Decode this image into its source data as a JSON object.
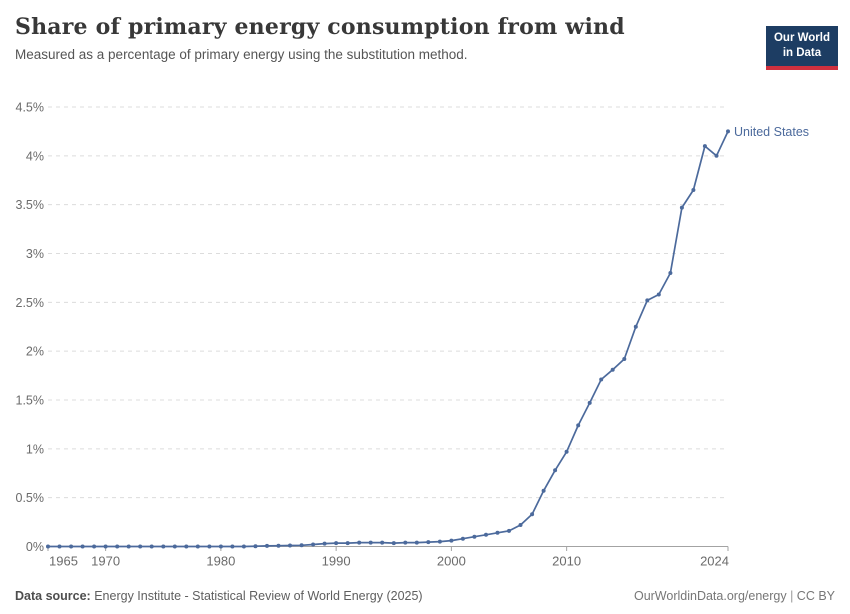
{
  "header": {
    "title": "Share of primary energy consumption from wind",
    "subtitle": "Measured as a percentage of primary energy using the substitution method."
  },
  "logo": {
    "line1": "Our World",
    "line2": "in Data",
    "bg_color": "#1d3d63",
    "bar_color": "#cf303e"
  },
  "footer": {
    "datasource_label": "Data source:",
    "datasource_text": " Energy Institute - Statistical Review of World Energy (2025)",
    "url_label": "OurWorldinData.org/energy",
    "separator": " | ",
    "license_label": "CC BY"
  },
  "chart_data": {
    "type": "line",
    "title": "Share of primary energy consumption from wind",
    "subtitle": "Measured as a percentage of primary energy using the substitution method.",
    "xlabel": "",
    "ylabel": "",
    "x_range": [
      1965,
      2024
    ],
    "ylim": [
      0,
      4.5
    ],
    "grid": "horizontal-dashed",
    "legend_position": "end-of-line",
    "xticks": [
      1965,
      1970,
      1980,
      1990,
      2000,
      2010,
      2024
    ],
    "yticks": [
      {
        "value": 0,
        "label": "0%"
      },
      {
        "value": 0.5,
        "label": "0.5%"
      },
      {
        "value": 1,
        "label": "1%"
      },
      {
        "value": 1.5,
        "label": "1.5%"
      },
      {
        "value": 2,
        "label": "2%"
      },
      {
        "value": 2.5,
        "label": "2.5%"
      },
      {
        "value": 3,
        "label": "3%"
      },
      {
        "value": 3.5,
        "label": "3.5%"
      },
      {
        "value": 4,
        "label": "4%"
      },
      {
        "value": 4.5,
        "label": "4.5%"
      }
    ],
    "years": [
      1965,
      1966,
      1967,
      1968,
      1969,
      1970,
      1971,
      1972,
      1973,
      1974,
      1975,
      1976,
      1977,
      1978,
      1979,
      1980,
      1981,
      1982,
      1983,
      1984,
      1985,
      1986,
      1987,
      1988,
      1989,
      1990,
      1991,
      1992,
      1993,
      1994,
      1995,
      1996,
      1997,
      1998,
      1999,
      2000,
      2001,
      2002,
      2003,
      2004,
      2005,
      2006,
      2007,
      2008,
      2009,
      2010,
      2011,
      2012,
      2013,
      2014,
      2015,
      2016,
      2017,
      2018,
      2019,
      2020,
      2021,
      2022,
      2023,
      2024
    ],
    "series": [
      {
        "name": "United States",
        "color": "#4c6a9c",
        "values": [
          0,
          0,
          0,
          0,
          0,
          0,
          0,
          0,
          0,
          0,
          0,
          0,
          0,
          0,
          0,
          0,
          0,
          0,
          0.003,
          0.006,
          0.008,
          0.01,
          0.012,
          0.02,
          0.03,
          0.035,
          0.035,
          0.04,
          0.04,
          0.04,
          0.035,
          0.04,
          0.04,
          0.045,
          0.05,
          0.06,
          0.08,
          0.1,
          0.12,
          0.14,
          0.16,
          0.22,
          0.33,
          0.57,
          0.78,
          0.97,
          1.24,
          1.47,
          1.71,
          1.81,
          1.92,
          2.25,
          2.52,
          2.58,
          2.8,
          3.47,
          3.65,
          4.1,
          4.0,
          4.25
        ]
      }
    ]
  }
}
